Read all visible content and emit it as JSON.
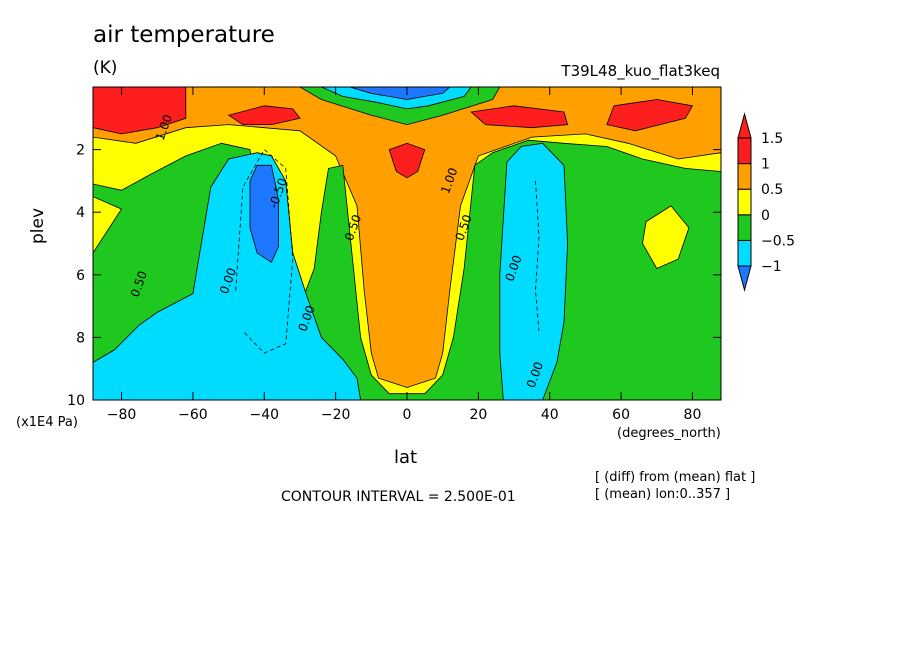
{
  "header": {
    "title": "air temperature",
    "units": "(K)",
    "experiment": "T39L48_kuo_flat3keq"
  },
  "footer": {
    "contour_interval": "CONTOUR INTERVAL = 2.500E-01",
    "note1": "[ (diff) from (mean) flat ]",
    "note2": "[ (mean) lon:0..357 ]"
  },
  "chart_data": {
    "type": "heatmap",
    "title": "air temperature",
    "units": "(K)",
    "xlabel": "lat",
    "xunit": "(degrees_north)",
    "ylabel": "plev",
    "yunit": "(x1E4 Pa)",
    "xlim": [
      -88,
      88
    ],
    "ylim": [
      10,
      0
    ],
    "x_ticks": [
      -80,
      -60,
      -40,
      -20,
      0,
      20,
      40,
      60,
      80
    ],
    "x_tick_labels": [
      "−80",
      "−60",
      "−40",
      "−20",
      "0",
      "20",
      "40",
      "60",
      "80"
    ],
    "y_ticks": [
      2,
      4,
      6,
      8,
      10
    ],
    "y_tick_labels": [
      "2",
      "4",
      "6",
      "8",
      "10"
    ],
    "contour_interval": 0.25,
    "colorbar": {
      "levels": [
        -1,
        -0.5,
        0,
        0.5,
        1,
        1.5
      ],
      "labels": [
        "−1",
        "−0.5",
        "0",
        "0.5",
        "1",
        "1.5"
      ],
      "colors": [
        "#1e78ff",
        "#00dcff",
        "#1ec81e",
        "#ffff00",
        "#ffa000",
        "#ff1e1e"
      ],
      "under_color": "#1e78ff",
      "over_color": "#ff1e1e"
    },
    "contour_labels": [
      {
        "text": "1.00",
        "lat": -68,
        "plev": 1.3
      },
      {
        "text": "0.50",
        "lat": -75,
        "plev": 6.3
      },
      {
        "text": "0.00",
        "lat": -50,
        "plev": 6.2
      },
      {
        "text": "-0.50",
        "lat": -36,
        "plev": 3.4
      },
      {
        "text": "0.00",
        "lat": -28,
        "plev": 7.4
      },
      {
        "text": "0.50",
        "lat": -15,
        "plev": 4.5
      },
      {
        "text": "1.00",
        "lat": 12,
        "plev": 3.0
      },
      {
        "text": "0.50",
        "lat": 16,
        "plev": 4.5
      },
      {
        "text": "0.00",
        "lat": 30,
        "plev": 5.8
      },
      {
        "text": "0.00",
        "lat": 36,
        "plev": 9.2
      }
    ],
    "regions": [
      {
        "value": 0.75,
        "polygon": [
          [
            -88,
            0
          ],
          [
            88,
            0
          ],
          [
            88,
            10
          ],
          [
            -88,
            10
          ]
        ]
      },
      {
        "value": 0.25,
        "polygon": [
          [
            -88,
            1.6
          ],
          [
            -76,
            1.8
          ],
          [
            -62,
            1.3
          ],
          [
            -50,
            1.2
          ],
          [
            -30,
            1.4
          ],
          [
            -20,
            2.2
          ],
          [
            -14,
            3.8
          ],
          [
            -12,
            6.5
          ],
          [
            -10,
            8.5
          ],
          [
            -8,
            9.3
          ],
          [
            0,
            9.6
          ],
          [
            8,
            9.3
          ],
          [
            10,
            8.5
          ],
          [
            12,
            6.5
          ],
          [
            15,
            3.8
          ],
          [
            20,
            2.2
          ],
          [
            35,
            1.6
          ],
          [
            50,
            1.5
          ],
          [
            62,
            1.8
          ],
          [
            76,
            2.3
          ],
          [
            88,
            2.1
          ],
          [
            88,
            10
          ],
          [
            -88,
            10
          ]
        ]
      },
      {
        "value": -0.25,
        "polygon": [
          [
            -88,
            3.1
          ],
          [
            -80,
            3.3
          ],
          [
            -72,
            2.8
          ],
          [
            -62,
            2.2
          ],
          [
            -52,
            1.8
          ],
          [
            -44,
            2.0
          ],
          [
            -40,
            5.0
          ],
          [
            -36,
            6.6
          ],
          [
            -30,
            7.0
          ],
          [
            -26,
            5.8
          ],
          [
            -24,
            4.0
          ],
          [
            -22,
            2.6
          ],
          [
            -18,
            2.5
          ],
          [
            -15,
            5.8
          ],
          [
            -13,
            8.0
          ],
          [
            -10,
            9.2
          ],
          [
            -5,
            9.8
          ],
          [
            5,
            9.8
          ],
          [
            10,
            9.2
          ],
          [
            13,
            8.0
          ],
          [
            16,
            5.8
          ],
          [
            19,
            2.5
          ],
          [
            24,
            2.1
          ],
          [
            34,
            1.7
          ],
          [
            44,
            1.8
          ],
          [
            56,
            1.9
          ],
          [
            66,
            2.3
          ],
          [
            78,
            2.6
          ],
          [
            88,
            2.7
          ],
          [
            88,
            10
          ],
          [
            -88,
            10
          ]
        ]
      },
      {
        "value": 0.25,
        "polygon": [
          [
            -88,
            3.5
          ],
          [
            -80,
            3.9
          ],
          [
            -88,
            5.3
          ]
        ]
      },
      {
        "value": 0.25,
        "polygon": [
          [
            67,
            4.3
          ],
          [
            74,
            3.8
          ],
          [
            79,
            4.5
          ],
          [
            76,
            5.5
          ],
          [
            70,
            5.8
          ],
          [
            66,
            5.0
          ]
        ]
      },
      {
        "value": -0.75,
        "polygon": [
          [
            -88,
            8.8
          ],
          [
            -82,
            8.4
          ],
          [
            -75,
            7.6
          ],
          [
            -70,
            7.2
          ],
          [
            -60,
            6.6
          ],
          [
            -55,
            3.2
          ],
          [
            -50,
            2.3
          ],
          [
            -42,
            2.1
          ],
          [
            -38,
            2.2
          ],
          [
            -34,
            3.0
          ],
          [
            -32,
            5.3
          ],
          [
            -28,
            6.7
          ],
          [
            -24,
            8.0
          ],
          [
            -18,
            8.7
          ],
          [
            -14,
            9.3
          ],
          [
            -13,
            10
          ],
          [
            -88,
            10
          ]
        ]
      },
      {
        "value": -0.75,
        "polygon": [
          [
            27,
            10
          ],
          [
            26,
            8.5
          ],
          [
            26,
            6.0
          ],
          [
            28,
            2.4
          ],
          [
            32,
            1.9
          ],
          [
            38,
            1.8
          ],
          [
            44,
            2.5
          ],
          [
            45,
            5.0
          ],
          [
            44,
            7.5
          ],
          [
            42,
            8.8
          ],
          [
            38,
            10
          ]
        ]
      },
      {
        "value": -1.25,
        "polygon": [
          [
            -44,
            3.0
          ],
          [
            -42,
            2.5
          ],
          [
            -38,
            2.5
          ],
          [
            -36,
            3.6
          ],
          [
            -36,
            5.1
          ],
          [
            -38,
            5.6
          ],
          [
            -42,
            5.3
          ],
          [
            -44,
            4.5
          ]
        ]
      },
      {
        "value": 1.25,
        "polygon": [
          [
            -5,
            2.0
          ],
          [
            0,
            1.8
          ],
          [
            5,
            2.0
          ],
          [
            3,
            2.7
          ],
          [
            0,
            2.9
          ],
          [
            -3,
            2.7
          ]
        ]
      },
      {
        "value": 1.75,
        "polygon": [
          [
            -88,
            0
          ],
          [
            -62,
            0
          ],
          [
            -62,
            1.0
          ],
          [
            -70,
            1.3
          ],
          [
            -80,
            1.5
          ],
          [
            -88,
            1.3
          ]
        ]
      },
      {
        "value": 1.75,
        "polygon": [
          [
            -50,
            0.9
          ],
          [
            -40,
            0.6
          ],
          [
            -32,
            0.7
          ],
          [
            -30,
            1.0
          ],
          [
            -38,
            1.2
          ],
          [
            -46,
            1.2
          ]
        ]
      },
      {
        "value": 1.75,
        "polygon": [
          [
            18,
            0.8
          ],
          [
            30,
            0.6
          ],
          [
            44,
            0.8
          ],
          [
            45,
            1.2
          ],
          [
            35,
            1.3
          ],
          [
            22,
            1.2
          ]
        ]
      },
      {
        "value": 1.75,
        "polygon": [
          [
            58,
            0.6
          ],
          [
            70,
            0.4
          ],
          [
            80,
            0.6
          ],
          [
            78,
            1.0
          ],
          [
            64,
            1.4
          ],
          [
            56,
            1.2
          ]
        ]
      },
      {
        "value": -0.25,
        "polygon": [
          [
            -30,
            0
          ],
          [
            26,
            0
          ],
          [
            24,
            0.4
          ],
          [
            10,
            0.9
          ],
          [
            0,
            1.2
          ],
          [
            -10,
            0.9
          ],
          [
            -24,
            0.4
          ]
        ]
      },
      {
        "value": -0.75,
        "polygon": [
          [
            -24,
            0
          ],
          [
            18,
            0
          ],
          [
            16,
            0.3
          ],
          [
            6,
            0.6
          ],
          [
            0,
            0.7
          ],
          [
            -8,
            0.5
          ],
          [
            -18,
            0.3
          ]
        ]
      },
      {
        "value": -1.25,
        "polygon": [
          [
            -16,
            0
          ],
          [
            12,
            0
          ],
          [
            10,
            0.2
          ],
          [
            0,
            0.4
          ],
          [
            -10,
            0.2
          ]
        ]
      }
    ]
  }
}
